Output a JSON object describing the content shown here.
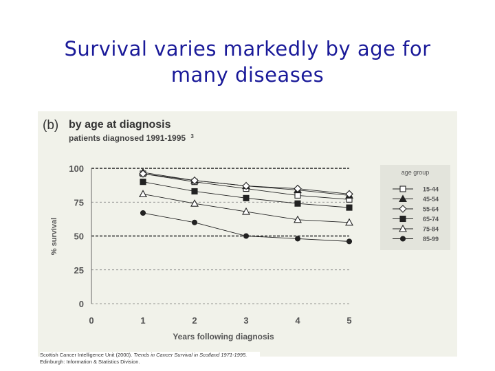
{
  "slide": {
    "title_line1": "Survival varies markedly by age for",
    "title_line2": "many diseases"
  },
  "chart_data": {
    "type": "line",
    "panel_label": "(b)",
    "title": "by age at diagnosis",
    "subtitle": "patients diagnosed 1991-1995",
    "subtitle_note": "3",
    "xlabel": "Years following diagnosis",
    "ylabel": "% survival",
    "x": [
      1,
      2,
      3,
      4,
      5
    ],
    "xticks": [
      0,
      1,
      2,
      3,
      4,
      5
    ],
    "yticks": [
      0,
      25,
      50,
      75,
      100
    ],
    "xlim": [
      0,
      5
    ],
    "ylim": [
      0,
      100
    ],
    "grid": "dashed horizontal lines at each y tick",
    "legend_title": "age group",
    "legend_position": "right",
    "series": [
      {
        "name": "15-44",
        "marker": "open-square",
        "values": [
          96,
          90,
          85,
          80,
          77
        ]
      },
      {
        "name": "45-54",
        "marker": "filled-triangle",
        "values": [
          97,
          91,
          87,
          84,
          80
        ]
      },
      {
        "name": "55-64",
        "marker": "open-diamond",
        "values": [
          96,
          91,
          87,
          85,
          81
        ]
      },
      {
        "name": "65-74",
        "marker": "filled-square",
        "values": [
          90,
          83,
          78,
          74,
          71
        ]
      },
      {
        "name": "75-84",
        "marker": "open-triangle",
        "values": [
          81,
          74,
          68,
          62,
          60
        ]
      },
      {
        "name": "85-99",
        "marker": "filled-circle",
        "values": [
          67,
          60,
          50,
          48,
          46
        ]
      }
    ]
  },
  "source": {
    "prefix": "Scottish Cancer Intelligence Unit (2000).",
    "italic": "Trends in Cancer Survival in Scotland 1971-1995.",
    "suffix": "Edinburgh: Information & Statistics Division."
  },
  "colors": {
    "title_text": "#1a1a99",
    "panel_background": "#f1f2ea",
    "line": "#222222",
    "legend_background": "#e3e4dc"
  }
}
